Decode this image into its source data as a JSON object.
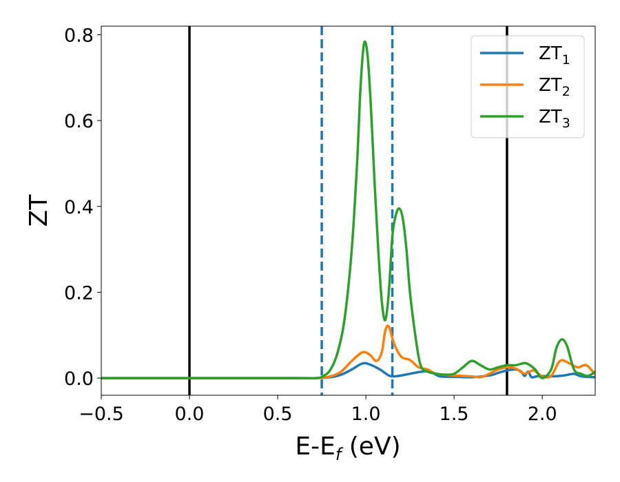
{
  "chart_data": {
    "type": "line",
    "xlabel_main": "E-E",
    "xlabel_sub": "f",
    "xlabel_tail": " (eV)",
    "ylabel": "ZT",
    "xlim": [
      -0.5,
      2.3
    ],
    "ylim": [
      -0.04,
      0.82
    ],
    "xticks": [
      -0.5,
      0.0,
      0.5,
      1.0,
      1.5,
      2.0
    ],
    "xtick_labels": [
      "−0.5",
      "0.0",
      "0.5",
      "1.0",
      "1.5",
      "2.0"
    ],
    "yticks": [
      0.0,
      0.2,
      0.4,
      0.6,
      0.8
    ],
    "ytick_labels": [
      "0.0",
      "0.2",
      "0.4",
      "0.6",
      "0.8"
    ],
    "grid": false,
    "legend_position": "top-right",
    "vlines": [
      {
        "x": 0.0,
        "style": "solid",
        "color": "#000000"
      },
      {
        "x": 1.8,
        "style": "solid",
        "color": "#000000"
      },
      {
        "x": 0.75,
        "style": "dashed",
        "color": "#1f77b4"
      },
      {
        "x": 1.15,
        "style": "dashed",
        "color": "#1f77b4"
      }
    ],
    "series": [
      {
        "name": "ZT",
        "sub": "1",
        "color": "#1f77b4",
        "points": [
          [
            -0.5,
            0
          ],
          [
            0.6,
            0
          ],
          [
            0.72,
            0
          ],
          [
            0.8,
            0.002
          ],
          [
            0.86,
            0.008
          ],
          [
            0.92,
            0.02
          ],
          [
            0.98,
            0.034
          ],
          [
            1.02,
            0.032
          ],
          [
            1.08,
            0.02
          ],
          [
            1.13,
            0.006
          ],
          [
            1.16,
            0.004
          ],
          [
            1.2,
            0.006
          ],
          [
            1.25,
            0.01
          ],
          [
            1.3,
            0.014
          ],
          [
            1.35,
            0.016
          ],
          [
            1.38,
            0.012
          ],
          [
            1.42,
            0.004
          ],
          [
            1.5,
            0.003
          ],
          [
            1.6,
            0.002
          ],
          [
            1.7,
            0.006
          ],
          [
            1.75,
            0.012
          ],
          [
            1.8,
            0.018
          ],
          [
            1.85,
            0.02
          ],
          [
            1.88,
            0.015
          ],
          [
            1.9,
            0.005
          ],
          [
            1.92,
            0.015
          ],
          [
            1.94,
            0.002
          ],
          [
            1.98,
            0.005
          ],
          [
            2.05,
            0.004
          ],
          [
            2.12,
            0.006
          ],
          [
            2.18,
            0.01
          ],
          [
            2.22,
            0.004
          ],
          [
            2.3,
            0.002
          ]
        ]
      },
      {
        "name": "ZT",
        "sub": "2",
        "color": "#ff7f0e",
        "points": [
          [
            -0.5,
            0
          ],
          [
            0.6,
            0
          ],
          [
            0.72,
            0
          ],
          [
            0.8,
            0.004
          ],
          [
            0.86,
            0.015
          ],
          [
            0.92,
            0.04
          ],
          [
            0.98,
            0.06
          ],
          [
            1.02,
            0.055
          ],
          [
            1.06,
            0.04
          ],
          [
            1.09,
            0.06
          ],
          [
            1.11,
            0.11
          ],
          [
            1.13,
            0.12
          ],
          [
            1.16,
            0.08
          ],
          [
            1.2,
            0.05
          ],
          [
            1.25,
            0.042
          ],
          [
            1.3,
            0.025
          ],
          [
            1.35,
            0.02
          ],
          [
            1.4,
            0.01
          ],
          [
            1.5,
            0.006
          ],
          [
            1.6,
            0.004
          ],
          [
            1.65,
            0.002
          ],
          [
            1.7,
            0.01
          ],
          [
            1.75,
            0.02
          ],
          [
            1.8,
            0.025
          ],
          [
            1.85,
            0.022
          ],
          [
            1.9,
            0.01
          ],
          [
            1.95,
            0.018
          ],
          [
            2.0,
            0.004
          ],
          [
            2.05,
            0.005
          ],
          [
            2.1,
            0.04
          ],
          [
            2.15,
            0.035
          ],
          [
            2.2,
            0.025
          ],
          [
            2.25,
            0.03
          ],
          [
            2.3,
            0.008
          ]
        ]
      },
      {
        "name": "ZT",
        "sub": "3",
        "color": "#2ca02c",
        "points": [
          [
            -0.5,
            0
          ],
          [
            0.6,
            0
          ],
          [
            0.72,
            0
          ],
          [
            0.76,
            0.005
          ],
          [
            0.8,
            0.02
          ],
          [
            0.84,
            0.06
          ],
          [
            0.88,
            0.14
          ],
          [
            0.92,
            0.3
          ],
          [
            0.95,
            0.5
          ],
          [
            0.97,
            0.68
          ],
          [
            0.99,
            0.78
          ],
          [
            1.01,
            0.75
          ],
          [
            1.03,
            0.62
          ],
          [
            1.05,
            0.45
          ],
          [
            1.07,
            0.3
          ],
          [
            1.09,
            0.18
          ],
          [
            1.11,
            0.135
          ],
          [
            1.13,
            0.2
          ],
          [
            1.15,
            0.33
          ],
          [
            1.17,
            0.38
          ],
          [
            1.19,
            0.395
          ],
          [
            1.21,
            0.37
          ],
          [
            1.23,
            0.3
          ],
          [
            1.25,
            0.2
          ],
          [
            1.28,
            0.1
          ],
          [
            1.31,
            0.03
          ],
          [
            1.35,
            0.015
          ],
          [
            1.4,
            0.01
          ],
          [
            1.45,
            0.008
          ],
          [
            1.5,
            0.01
          ],
          [
            1.55,
            0.025
          ],
          [
            1.6,
            0.04
          ],
          [
            1.65,
            0.03
          ],
          [
            1.7,
            0.02
          ],
          [
            1.75,
            0.025
          ],
          [
            1.8,
            0.03
          ],
          [
            1.85,
            0.03
          ],
          [
            1.9,
            0.035
          ],
          [
            1.93,
            0.03
          ],
          [
            1.96,
            0.02
          ],
          [
            2.0,
            0.0
          ],
          [
            2.05,
            0.02
          ],
          [
            2.08,
            0.07
          ],
          [
            2.11,
            0.09
          ],
          [
            2.14,
            0.075
          ],
          [
            2.18,
            0.02
          ],
          [
            2.22,
            0.01
          ],
          [
            2.26,
            0.005
          ],
          [
            2.3,
            0.015
          ]
        ]
      }
    ]
  }
}
